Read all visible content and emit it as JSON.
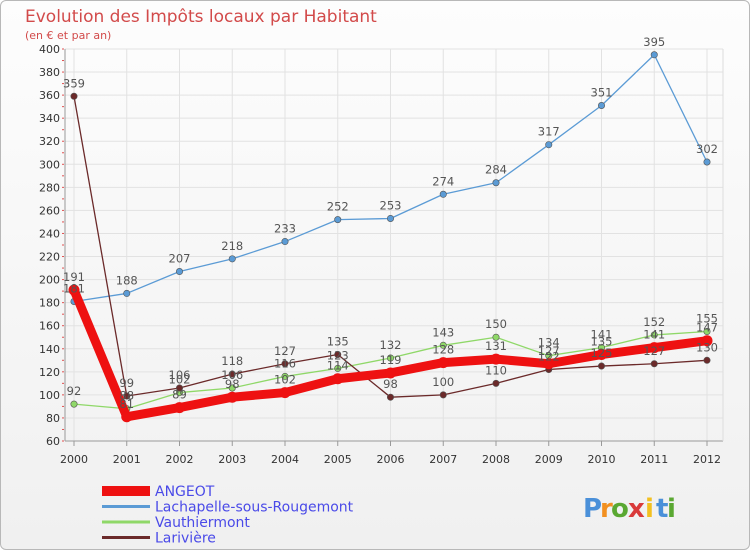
{
  "chart_data": {
    "type": "line",
    "title": "Evolution des Impôts locaux par Habitant",
    "subtitle": "(en € et par an)",
    "xlabel": "",
    "ylabel": "",
    "categories": [
      "2000",
      "2001",
      "2002",
      "2003",
      "2004",
      "2005",
      "2006",
      "2007",
      "2008",
      "2009",
      "2010",
      "2011",
      "2012"
    ],
    "y_ticks": [
      "400",
      "380",
      "360",
      "340",
      "320",
      "300",
      "280",
      "260",
      "240",
      "220",
      "200",
      "180",
      "160",
      "140",
      "120",
      "100",
      "80",
      "60"
    ],
    "ylim": [
      60,
      400
    ],
    "grid": true,
    "legend_position": "bottom-left",
    "series": [
      {
        "name": "Lachapelle-sous-Rougemont",
        "color": "#5b9bd5",
        "values": [
          181,
          188,
          207,
          218,
          233,
          252,
          253,
          274,
          284,
          317,
          351,
          395,
          302
        ],
        "labels": [
          "181",
          "188",
          "207",
          "218",
          "233",
          "252",
          "253",
          "274",
          "284",
          "317",
          "351",
          "395",
          "302"
        ]
      },
      {
        "name": "Vauthiermont",
        "color": "#8fd868",
        "values": [
          92,
          88,
          102,
          106,
          116,
          123,
          132,
          143,
          150,
          134,
          141,
          152,
          155
        ],
        "labels": [
          "92",
          "88",
          "102",
          "106",
          "116",
          "123",
          "132",
          "143",
          "150",
          "134",
          "141",
          "152",
          "155"
        ]
      },
      {
        "name": "Larivière",
        "color": "#6b2a2a",
        "values": [
          359,
          99,
          106,
          118,
          127,
          135,
          98,
          100,
          110,
          122,
          125,
          127,
          130
        ],
        "labels": [
          "359",
          "99",
          "106",
          "118",
          "127",
          "135",
          "98",
          "100",
          "110",
          "122",
          "125",
          "127",
          "130"
        ]
      },
      {
        "name": "ANGEOT",
        "color": "#ee1111",
        "values": [
          191,
          81,
          89,
          98,
          102,
          114,
          119,
          128,
          131,
          127,
          135,
          141,
          147
        ],
        "labels": [
          "191",
          "81",
          "89",
          "98",
          "102",
          "114",
          "119",
          "128",
          "131",
          "127",
          "135",
          "141",
          "147"
        ]
      }
    ],
    "legend": [
      {
        "name": "ANGEOT",
        "color": "#ee1111",
        "text_color": "#4a4ae8"
      },
      {
        "name": "Lachapelle-sous-Rougemont",
        "color": "#5b9bd5",
        "text_color": "#4a4ae8"
      },
      {
        "name": "Vauthiermont",
        "color": "#8fd868",
        "text_color": "#4a4ae8"
      },
      {
        "name": "Larivière",
        "color": "#6b2a2a",
        "text_color": "#4a4ae8"
      }
    ]
  },
  "logo": {
    "letters": [
      "P",
      "r",
      "o",
      "x",
      "i",
      "t",
      "i"
    ],
    "colors": [
      "#4a90d9",
      "#f29020",
      "#5aa832",
      "#d93a3a",
      "#f2c020",
      "#4a90d9",
      "#5aa832"
    ]
  }
}
